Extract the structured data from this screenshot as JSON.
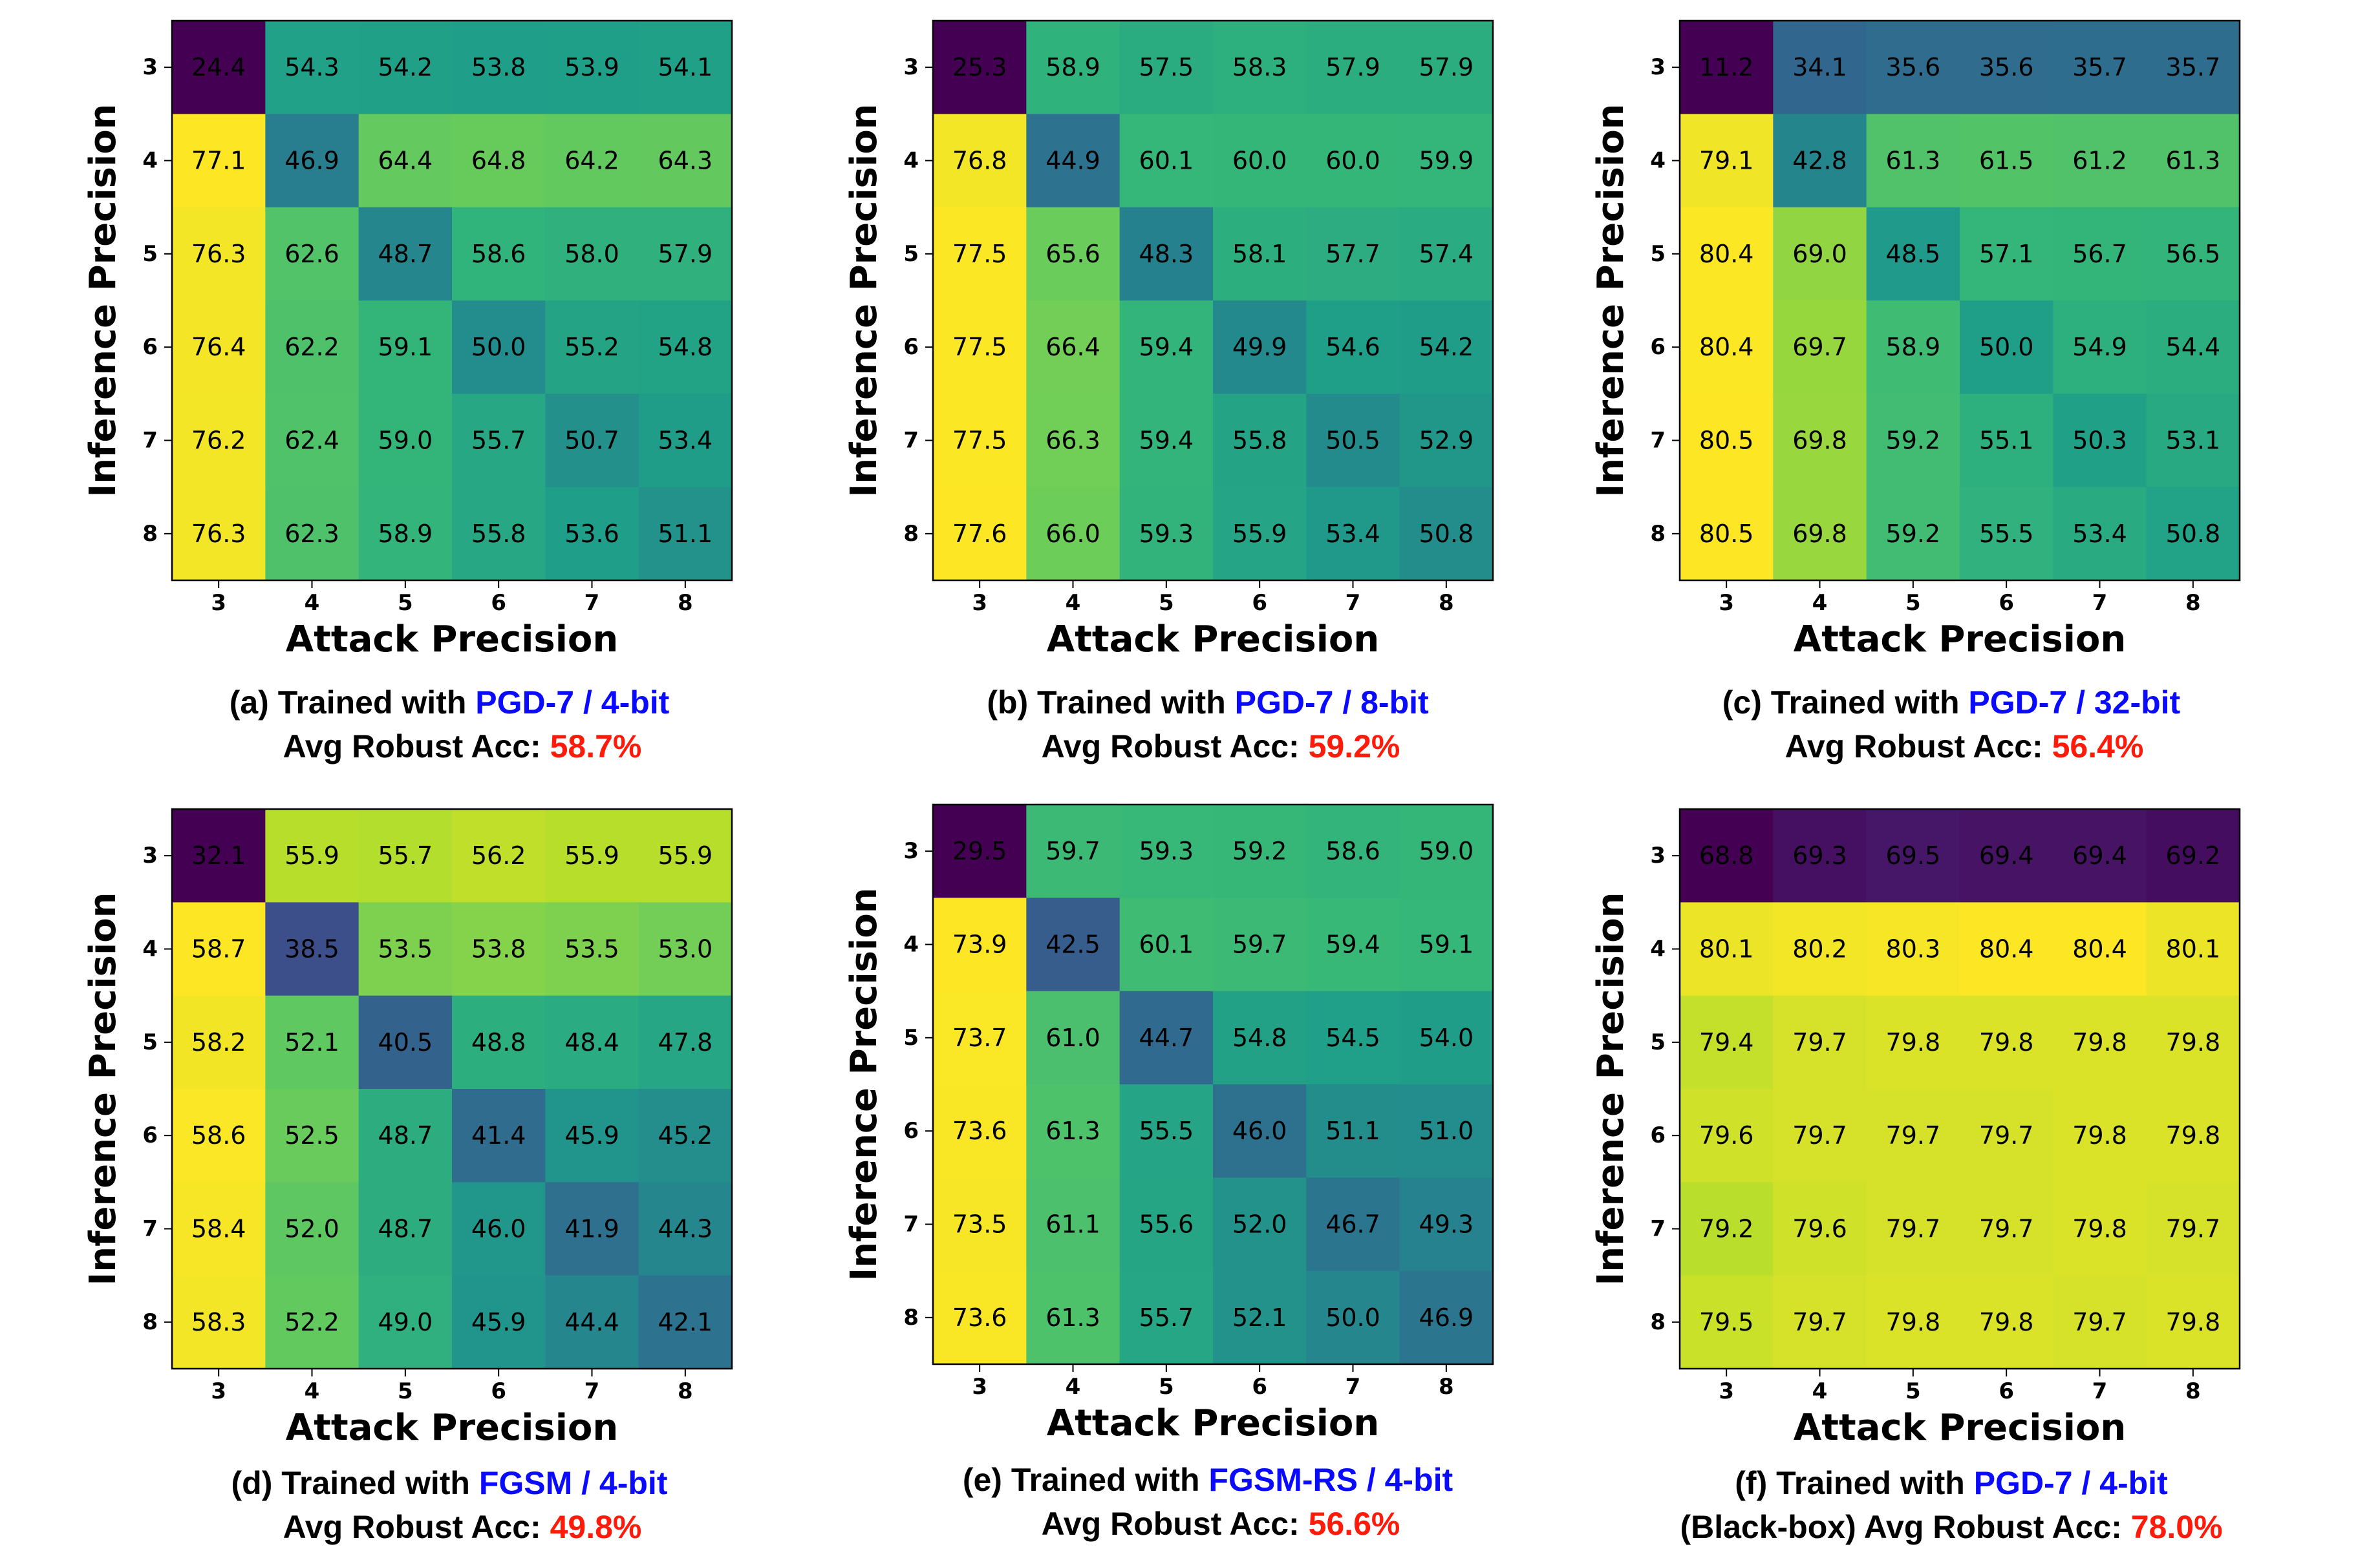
{
  "colors": {
    "method": "#0a0aff",
    "accuracy": "#ff1a0a",
    "colormap": "viridis"
  },
  "chart_data": [
    {
      "type": "heatmap",
      "xlabel": "Attack Precision",
      "ylabel": "Inference Precision",
      "x_ticks": [
        "3",
        "4",
        "5",
        "6",
        "7",
        "8"
      ],
      "y_ticks": [
        "3",
        "4",
        "5",
        "6",
        "7",
        "8"
      ],
      "values": [
        [
          24.4,
          54.3,
          54.2,
          53.8,
          53.9,
          54.1
        ],
        [
          77.1,
          46.9,
          64.4,
          64.8,
          64.2,
          64.3
        ],
        [
          76.3,
          62.6,
          48.7,
          58.6,
          58.0,
          57.9
        ],
        [
          76.4,
          62.2,
          59.1,
          50.0,
          55.2,
          54.8
        ],
        [
          76.2,
          62.4,
          59.0,
          55.7,
          50.7,
          53.4
        ],
        [
          76.3,
          62.3,
          58.9,
          55.8,
          53.6,
          51.1
        ]
      ],
      "value_labels": [
        [
          "24.4",
          "54.3",
          "54.2",
          "53.8",
          "53.9",
          "54.1"
        ],
        [
          "77.1",
          "46.9",
          "64.4",
          "64.8",
          "64.2",
          "64.3"
        ],
        [
          "76.3",
          "62.6",
          "48.7",
          "58.6",
          "58.0",
          "57.9"
        ],
        [
          "76.4",
          "62.2",
          "59.1",
          "50.0",
          "55.2",
          "54.8"
        ],
        [
          "76.2",
          "62.4",
          "59.0",
          "55.7",
          "50.7",
          "53.4"
        ],
        [
          "76.3",
          "62.3",
          "58.9",
          "55.8",
          "53.6",
          "51.1"
        ]
      ],
      "caption": {
        "prefix": "(a) Trained with ",
        "method": "PGD-7 / 4-bit",
        "acc_label": "Avg Robust Acc: ",
        "acc_value": "58.7%"
      }
    },
    {
      "type": "heatmap",
      "xlabel": "Attack Precision",
      "ylabel": "Inference Precision",
      "x_ticks": [
        "3",
        "4",
        "5",
        "6",
        "7",
        "8"
      ],
      "y_ticks": [
        "3",
        "4",
        "5",
        "6",
        "7",
        "8"
      ],
      "values": [
        [
          25.3,
          58.9,
          57.5,
          58.3,
          57.9,
          57.9
        ],
        [
          76.8,
          44.9,
          60.1,
          60.0,
          60.0,
          59.9
        ],
        [
          77.5,
          65.6,
          48.3,
          58.1,
          57.7,
          57.4
        ],
        [
          77.5,
          66.4,
          59.4,
          49.9,
          54.6,
          54.2
        ],
        [
          77.5,
          66.3,
          59.4,
          55.8,
          50.5,
          52.9
        ],
        [
          77.6,
          66.0,
          59.3,
          55.9,
          53.4,
          50.8
        ]
      ],
      "value_labels": [
        [
          "25.3",
          "58.9",
          "57.5",
          "58.3",
          "57.9",
          "57.9"
        ],
        [
          "76.8",
          "44.9",
          "60.1",
          "60.0",
          "60.0",
          "59.9"
        ],
        [
          "77.5",
          "65.6",
          "48.3",
          "58.1",
          "57.7",
          "57.4"
        ],
        [
          "77.5",
          "66.4",
          "59.4",
          "49.9",
          "54.6",
          "54.2"
        ],
        [
          "77.5",
          "66.3",
          "59.4",
          "55.8",
          "50.5",
          "52.9"
        ],
        [
          "77.6",
          "66.0",
          "59.3",
          "55.9",
          "53.4",
          "50.8"
        ]
      ],
      "caption": {
        "prefix": "(b) Trained with ",
        "method": "PGD-7 / 8-bit",
        "acc_label": "Avg Robust Acc: ",
        "acc_value": "59.2%"
      }
    },
    {
      "type": "heatmap",
      "xlabel": "Attack Precision",
      "ylabel": "Inference Precision",
      "x_ticks": [
        "3",
        "4",
        "5",
        "6",
        "7",
        "8"
      ],
      "y_ticks": [
        "3",
        "4",
        "5",
        "6",
        "7",
        "8"
      ],
      "values": [
        [
          11.2,
          34.1,
          35.6,
          35.6,
          35.7,
          35.7
        ],
        [
          79.1,
          42.8,
          61.3,
          61.5,
          61.2,
          61.3
        ],
        [
          80.4,
          69.0,
          48.5,
          57.1,
          56.7,
          56.5
        ],
        [
          80.4,
          69.7,
          58.9,
          50.0,
          54.9,
          54.4
        ],
        [
          80.5,
          69.8,
          59.2,
          55.1,
          50.3,
          53.1
        ],
        [
          80.5,
          69.8,
          59.2,
          55.5,
          53.4,
          50.8
        ]
      ],
      "value_labels": [
        [
          "11.2",
          "34.1",
          "35.6",
          "35.6",
          "35.7",
          "35.7"
        ],
        [
          "79.1",
          "42.8",
          "61.3",
          "61.5",
          "61.2",
          "61.3"
        ],
        [
          "80.4",
          "69.0",
          "48.5",
          "57.1",
          "56.7",
          "56.5"
        ],
        [
          "80.4",
          "69.7",
          "58.9",
          "50.0",
          "54.9",
          "54.4"
        ],
        [
          "80.5",
          "69.8",
          "59.2",
          "55.1",
          "50.3",
          "53.1"
        ],
        [
          "80.5",
          "69.8",
          "59.2",
          "55.5",
          "53.4",
          "50.8"
        ]
      ],
      "caption": {
        "prefix": "(c) Trained with ",
        "method": "PGD-7 / 32-bit",
        "acc_label": "Avg Robust Acc: ",
        "acc_value": "56.4%"
      }
    },
    {
      "type": "heatmap",
      "xlabel": "Attack Precision",
      "ylabel": "Inference Precision",
      "x_ticks": [
        "3",
        "4",
        "5",
        "6",
        "7",
        "8"
      ],
      "y_ticks": [
        "3",
        "4",
        "5",
        "6",
        "7",
        "8"
      ],
      "values": [
        [
          32.1,
          55.9,
          55.7,
          56.2,
          55.9,
          55.9
        ],
        [
          58.7,
          38.5,
          53.5,
          53.8,
          53.5,
          53.0
        ],
        [
          58.2,
          52.1,
          40.5,
          48.8,
          48.4,
          47.8
        ],
        [
          58.6,
          52.5,
          48.7,
          41.4,
          45.9,
          45.2
        ],
        [
          58.4,
          52.0,
          48.7,
          46.0,
          41.9,
          44.3
        ],
        [
          58.3,
          52.2,
          49.0,
          45.9,
          44.4,
          42.1
        ]
      ],
      "value_labels": [
        [
          "32.1",
          "55.9",
          "55.7",
          "56.2",
          "55.9",
          "55.9"
        ],
        [
          "58.7",
          "38.5",
          "53.5",
          "53.8",
          "53.5",
          "53.0"
        ],
        [
          "58.2",
          "52.1",
          "40.5",
          "48.8",
          "48.4",
          "47.8"
        ],
        [
          "58.6",
          "52.5",
          "48.7",
          "41.4",
          "45.9",
          "45.2"
        ],
        [
          "58.4",
          "52.0",
          "48.7",
          "46.0",
          "41.9",
          "44.3"
        ],
        [
          "58.3",
          "52.2",
          "49.0",
          "45.9",
          "44.4",
          "42.1"
        ]
      ],
      "caption": {
        "prefix": "(d) Trained with ",
        "method": "FGSM / 4-bit",
        "acc_label": "Avg Robust Acc: ",
        "acc_value": "49.8%"
      }
    },
    {
      "type": "heatmap",
      "xlabel": "Attack Precision",
      "ylabel": "Inference Precision",
      "x_ticks": [
        "3",
        "4",
        "5",
        "6",
        "7",
        "8"
      ],
      "y_ticks": [
        "3",
        "4",
        "5",
        "6",
        "7",
        "8"
      ],
      "values": [
        [
          29.5,
          59.7,
          59.3,
          59.2,
          58.6,
          59.0
        ],
        [
          73.9,
          42.5,
          60.1,
          59.7,
          59.4,
          59.1
        ],
        [
          73.7,
          61.0,
          44.7,
          54.8,
          54.5,
          54.0
        ],
        [
          73.6,
          61.3,
          55.5,
          46.0,
          51.1,
          51.0
        ],
        [
          73.5,
          61.1,
          55.6,
          52.0,
          46.7,
          49.3
        ],
        [
          73.6,
          61.3,
          55.7,
          52.1,
          50.0,
          46.9
        ]
      ],
      "value_labels": [
        [
          "29.5",
          "59.7",
          "59.3",
          "59.2",
          "58.6",
          "59.0"
        ],
        [
          "73.9",
          "42.5",
          "60.1",
          "59.7",
          "59.4",
          "59.1"
        ],
        [
          "73.7",
          "61.0",
          "44.7",
          "54.8",
          "54.5",
          "54.0"
        ],
        [
          "73.6",
          "61.3",
          "55.5",
          "46.0",
          "51.1",
          "51.0"
        ],
        [
          "73.5",
          "61.1",
          "55.6",
          "52.0",
          "46.7",
          "49.3"
        ],
        [
          "73.6",
          "61.3",
          "55.7",
          "52.1",
          "50.0",
          "46.9"
        ]
      ],
      "caption": {
        "prefix": "(e) Trained with ",
        "method": "FGSM-RS / 4-bit",
        "acc_label": "Avg Robust Acc: ",
        "acc_value": "56.6%"
      }
    },
    {
      "type": "heatmap",
      "xlabel": "Attack Precision",
      "ylabel": "Inference Precision",
      "x_ticks": [
        "3",
        "4",
        "5",
        "6",
        "7",
        "8"
      ],
      "y_ticks": [
        "3",
        "4",
        "5",
        "6",
        "7",
        "8"
      ],
      "values": [
        [
          68.8,
          69.3,
          69.5,
          69.4,
          69.4,
          69.2
        ],
        [
          80.1,
          80.2,
          80.3,
          80.4,
          80.4,
          80.1
        ],
        [
          79.4,
          79.7,
          79.8,
          79.8,
          79.8,
          79.8
        ],
        [
          79.6,
          79.7,
          79.7,
          79.7,
          79.8,
          79.8
        ],
        [
          79.2,
          79.6,
          79.7,
          79.7,
          79.8,
          79.7
        ],
        [
          79.5,
          79.7,
          79.8,
          79.8,
          79.7,
          79.8
        ]
      ],
      "value_labels": [
        [
          "68.8",
          "69.3",
          "69.5",
          "69.4",
          "69.4",
          "69.2"
        ],
        [
          "80.1",
          "80.2",
          "80.3",
          "80.4",
          "80.4",
          "80.1"
        ],
        [
          "79.4",
          "79.7",
          "79.8",
          "79.8",
          "79.8",
          "79.8"
        ],
        [
          "79.6",
          "79.7",
          "79.7",
          "79.7",
          "79.8",
          "79.8"
        ],
        [
          "79.2",
          "79.6",
          "79.7",
          "79.7",
          "79.8",
          "79.7"
        ],
        [
          "79.5",
          "79.7",
          "79.8",
          "79.8",
          "79.7",
          "79.8"
        ]
      ],
      "caption": {
        "prefix": "(f) Trained with ",
        "method": "PGD-7 / 4-bit",
        "acc_label": "(Black-box) Avg Robust Acc: ",
        "acc_value": "78.0%"
      }
    }
  ]
}
